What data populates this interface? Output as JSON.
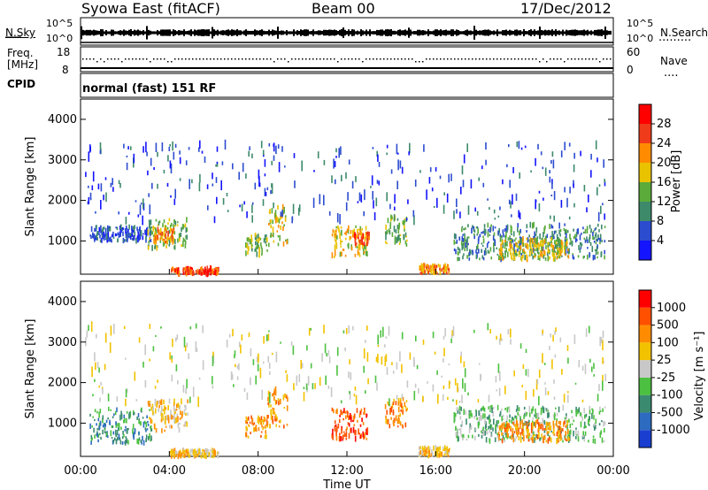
{
  "header": {
    "station": "Syowa East (fitACF)",
    "beam": "Beam 00",
    "date": "17/Dec/2012"
  },
  "summary": {
    "nsky_label": "N.Sky",
    "nsky_top": "10^5",
    "nsky_bottom": "10^0",
    "nsearch_label": "N.Search",
    "nsearch_top": "10^5",
    "nsearch_bottom": "10^0",
    "freq_label_1": "Freq.",
    "freq_label_2": "[MHz]",
    "freq_top": "18",
    "freq_bottom": "8",
    "nave_label": "Nave",
    "nave_top": "60",
    "nave_bottom": "0",
    "cpid_label": "CPID",
    "mode_text": "normal (fast) 151 RF"
  },
  "chart_data": [
    {
      "type": "heatmap",
      "name_in_figure": "power",
      "ylabel": "Slant Range [km]",
      "xlabel": "",
      "y_ticks": [
        "1000",
        "2000",
        "3000",
        "4000"
      ],
      "ylim": [
        180,
        4500
      ],
      "colorbar_label": "Power [dB]",
      "colorbar_ticks": [
        "4",
        "8",
        "12",
        "16",
        "20",
        "24",
        "28"
      ],
      "colorbar_colors": [
        "#1414ff",
        "#2c4ccf",
        "#3d8a6a",
        "#5aab3a",
        "#e9c200",
        "#ff8c00",
        "#ef3b1a",
        "#ff0000"
      ],
      "clusters": [
        {
          "t0": 0.4,
          "t1": 3.2,
          "r0": 1000,
          "r1": 1350,
          "level": 1
        },
        {
          "t0": 3.0,
          "t1": 4.8,
          "r0": 800,
          "r1": 1550,
          "level": 3
        },
        {
          "t0": 3.2,
          "t1": 4.2,
          "r0": 950,
          "r1": 1300,
          "level": 5
        },
        {
          "t0": 4.0,
          "t1": 6.2,
          "r0": 180,
          "r1": 330,
          "level": 6
        },
        {
          "t0": 7.4,
          "t1": 8.4,
          "r0": 650,
          "r1": 1150,
          "level": 3
        },
        {
          "t0": 8.4,
          "t1": 9.3,
          "r0": 900,
          "r1": 1850,
          "level": 4
        },
        {
          "t0": 11.3,
          "t1": 12.9,
          "r0": 600,
          "r1": 1350,
          "level": 4
        },
        {
          "t0": 12.3,
          "t1": 13.0,
          "r0": 900,
          "r1": 1200,
          "level": 6
        },
        {
          "t0": 13.7,
          "t1": 14.7,
          "r0": 900,
          "r1": 1600,
          "level": 3
        },
        {
          "t0": 15.2,
          "t1": 16.6,
          "r0": 200,
          "r1": 400,
          "level": 5
        },
        {
          "t0": 16.8,
          "t1": 23.6,
          "r0": 550,
          "r1": 1400,
          "level": 2
        },
        {
          "t0": 18.8,
          "t1": 22.0,
          "r0": 550,
          "r1": 1050,
          "level": 4
        },
        {
          "t0": 0.2,
          "t1": 23.8,
          "r0": 1500,
          "r1": 3400,
          "level": 1
        }
      ]
    },
    {
      "type": "heatmap",
      "name_in_figure": "velocity",
      "ylabel": "Slant Range [km]",
      "xlabel": "Time UT",
      "x_ticks": [
        "00:00",
        "04:00",
        "08:00",
        "12:00",
        "16:00",
        "20:00",
        "00:00"
      ],
      "y_ticks": [
        "1000",
        "2000",
        "3000",
        "4000"
      ],
      "ylim": [
        180,
        4500
      ],
      "colorbar_label": "Velocity [m s⁻¹]",
      "colorbar_ticks": [
        "1000",
        "500",
        "100",
        "25",
        "-25",
        "-100",
        "-500",
        "-1000"
      ],
      "colorbar_colors": [
        "#1a3fd0",
        "#2d6bc0",
        "#3a8a70",
        "#4cc040",
        "#c8c8c8",
        "#f2c200",
        "#ff8c00",
        "#ff5000",
        "#ff0000"
      ],
      "clusters": [
        {
          "t0": 0.4,
          "t1": 3.2,
          "r0": 500,
          "r1": 1350,
          "level": 2
        },
        {
          "t0": 3.0,
          "t1": 4.8,
          "r0": 800,
          "r1": 1550,
          "level": 5
        },
        {
          "t0": 4.0,
          "t1": 6.2,
          "r0": 180,
          "r1": 330,
          "level": 5
        },
        {
          "t0": 7.4,
          "t1": 8.4,
          "r0": 650,
          "r1": 1150,
          "level": 6
        },
        {
          "t0": 8.4,
          "t1": 9.3,
          "r0": 900,
          "r1": 1850,
          "level": 6
        },
        {
          "t0": 11.3,
          "t1": 12.9,
          "r0": 600,
          "r1": 1350,
          "level": 7
        },
        {
          "t0": 13.7,
          "t1": 14.7,
          "r0": 900,
          "r1": 1600,
          "level": 6
        },
        {
          "t0": 15.2,
          "t1": 16.6,
          "r0": 200,
          "r1": 400,
          "level": 5
        },
        {
          "t0": 16.8,
          "t1": 23.6,
          "r0": 550,
          "r1": 1400,
          "level": 3
        },
        {
          "t0": 18.8,
          "t1": 22.0,
          "r0": 550,
          "r1": 1050,
          "level": 6
        },
        {
          "t0": 0.2,
          "t1": 23.8,
          "r0": 1500,
          "r1": 3400,
          "level": 4
        }
      ]
    }
  ]
}
